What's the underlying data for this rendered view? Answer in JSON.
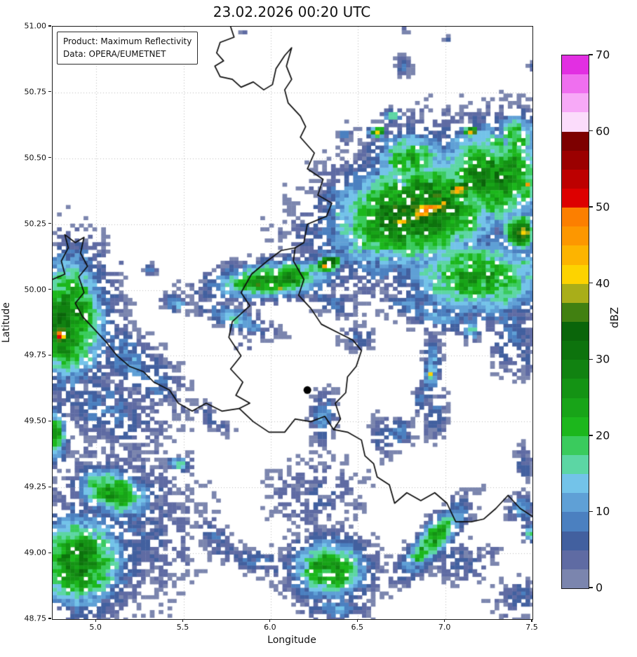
{
  "title": "23.02.2026 00:20 UTC",
  "annotation": {
    "product": "Product: Maximum Reflectivity",
    "source": "Data: OPERA/EUMETNET"
  },
  "axes": {
    "xlabel": "Longitude",
    "ylabel": "Latitude",
    "xlim": [
      4.75,
      7.5
    ],
    "ylim": [
      48.75,
      51.0
    ],
    "xticks": [
      5.0,
      5.5,
      6.0,
      6.5,
      7.0,
      7.5
    ],
    "xtick_labels": [
      "5.0",
      "5.5",
      "6.0",
      "6.5",
      "7.0",
      "7.5"
    ],
    "yticks": [
      51.0,
      50.75,
      50.5,
      50.25,
      50.0,
      49.75,
      49.5,
      49.25,
      49.0,
      48.75
    ],
    "ytick_labels": [
      "51.00",
      "50.75",
      "50.50",
      "50.25",
      "50.00",
      "49.75",
      "49.50",
      "49.25",
      "49.00",
      "48.75"
    ],
    "grid": "dotted"
  },
  "colorbar": {
    "label": "dBZ",
    "min": 0,
    "max": 70,
    "band_step": 2.5,
    "ticks": [
      0,
      10,
      20,
      30,
      40,
      50,
      60,
      70
    ],
    "palette_bottom_to_top": [
      "#7b85ae",
      "#5f6ba3",
      "#42609f",
      "#4b80c0",
      "#5fa0d6",
      "#73c3e9",
      "#5cd6a4",
      "#3acb5d",
      "#1cb71c",
      "#18a418",
      "#149314",
      "#118211",
      "#0d730d",
      "#0a650a",
      "#418011",
      "#a9ae19",
      "#fdd300",
      "#fdb400",
      "#fd9700",
      "#fc7f00",
      "#dd0000",
      "#bd0000",
      "#9b0000",
      "#7d0000",
      "#fbdcfb",
      "#f7a9f7",
      "#ef6fef",
      "#e22fe2"
    ]
  },
  "map": {
    "background": "#ffffff",
    "border_color": "#0d0d0d",
    "grid_color": "#bdbdbd",
    "marker": {
      "lon": 6.21,
      "lat": 49.62,
      "color": "#000000"
    },
    "borders": [
      [
        [
          5.77,
          51.0
        ],
        [
          5.79,
          50.96
        ],
        [
          5.71,
          50.94
        ],
        [
          5.69,
          50.9
        ],
        [
          5.73,
          50.87
        ],
        [
          5.68,
          50.85
        ],
        [
          5.71,
          50.81
        ],
        [
          5.78,
          50.8
        ],
        [
          5.83,
          50.77
        ],
        [
          5.9,
          50.79
        ],
        [
          5.96,
          50.76
        ],
        [
          6.01,
          50.78
        ],
        [
          6.03,
          50.84
        ],
        [
          6.08,
          50.89
        ],
        [
          6.12,
          50.92
        ],
        [
          6.09,
          50.85
        ],
        [
          6.12,
          50.8
        ],
        [
          6.08,
          50.76
        ],
        [
          6.1,
          50.71
        ],
        [
          6.17,
          50.66
        ],
        [
          6.2,
          50.62
        ],
        [
          6.17,
          50.58
        ],
        [
          6.25,
          50.52
        ],
        [
          6.21,
          50.46
        ],
        [
          6.3,
          50.42
        ],
        [
          6.27,
          50.36
        ],
        [
          6.35,
          50.33
        ],
        [
          6.32,
          50.28
        ],
        [
          6.21,
          50.25
        ],
        [
          6.19,
          50.18
        ],
        [
          6.14,
          50.16
        ]
      ],
      [
        [
          6.14,
          50.16
        ],
        [
          6.13,
          50.11
        ],
        [
          6.19,
          50.04
        ],
        [
          6.16,
          49.98
        ],
        [
          6.23,
          49.93
        ],
        [
          6.29,
          49.87
        ],
        [
          6.38,
          49.84
        ],
        [
          6.47,
          49.81
        ],
        [
          6.52,
          49.77
        ],
        [
          6.49,
          49.71
        ],
        [
          6.44,
          49.67
        ],
        [
          6.43,
          49.61
        ],
        [
          6.37,
          49.57
        ],
        [
          6.4,
          49.51
        ],
        [
          6.36,
          49.47
        ],
        [
          6.44,
          49.46
        ],
        [
          6.52,
          49.43
        ],
        [
          6.54,
          49.37
        ],
        [
          6.59,
          49.34
        ],
        [
          6.61,
          49.29
        ],
        [
          6.68,
          49.26
        ],
        [
          6.71,
          49.19
        ],
        [
          6.78,
          49.23
        ],
        [
          6.86,
          49.2
        ],
        [
          6.94,
          49.23
        ],
        [
          7.01,
          49.19
        ],
        [
          7.06,
          49.12
        ],
        [
          7.15,
          49.12
        ],
        [
          7.22,
          49.13
        ],
        [
          7.29,
          49.17
        ],
        [
          7.36,
          49.22
        ],
        [
          7.43,
          49.17
        ],
        [
          7.5,
          49.14
        ]
      ],
      [
        [
          6.14,
          50.16
        ],
        [
          6.06,
          50.15
        ],
        [
          5.98,
          50.11
        ],
        [
          5.89,
          50.06
        ],
        [
          5.83,
          49.99
        ],
        [
          5.88,
          49.94
        ],
        [
          5.78,
          49.88
        ],
        [
          5.76,
          49.82
        ],
        [
          5.83,
          49.75
        ],
        [
          5.77,
          49.7
        ],
        [
          5.84,
          49.65
        ],
        [
          5.8,
          49.6
        ],
        [
          5.88,
          49.57
        ],
        [
          5.82,
          49.55
        ],
        [
          5.9,
          49.5
        ],
        [
          5.99,
          49.46
        ],
        [
          6.08,
          49.46
        ],
        [
          6.14,
          49.51
        ],
        [
          6.23,
          49.5
        ],
        [
          6.31,
          49.52
        ],
        [
          6.36,
          49.47
        ]
      ],
      [
        [
          4.75,
          50.04
        ],
        [
          4.82,
          50.06
        ],
        [
          4.8,
          50.11
        ],
        [
          4.84,
          50.16
        ],
        [
          4.82,
          50.21
        ],
        [
          4.88,
          50.18
        ],
        [
          4.93,
          50.2
        ],
        [
          4.91,
          50.14
        ],
        [
          4.95,
          50.09
        ],
        [
          4.9,
          50.05
        ],
        [
          4.93,
          49.99
        ],
        [
          4.88,
          49.95
        ],
        [
          4.92,
          49.9
        ],
        [
          4.99,
          49.85
        ],
        [
          5.06,
          49.8
        ],
        [
          5.12,
          49.75
        ],
        [
          5.19,
          49.71
        ],
        [
          5.27,
          49.69
        ],
        [
          5.33,
          49.65
        ],
        [
          5.42,
          49.62
        ],
        [
          5.47,
          49.57
        ],
        [
          5.55,
          49.54
        ],
        [
          5.63,
          49.57
        ],
        [
          5.72,
          49.54
        ],
        [
          5.82,
          49.55
        ]
      ]
    ],
    "blob_format": "[lon, lat, radius_lon_deg, radius_lat_deg, angle_deg, peak_dbz]",
    "radar_blobs": [
      [
        6.85,
        50.3,
        0.58,
        0.23,
        8,
        33
      ],
      [
        7.27,
        50.43,
        0.38,
        0.21,
        0,
        30
      ],
      [
        6.8,
        50.5,
        0.24,
        0.12,
        0,
        24
      ],
      [
        7.19,
        50.05,
        0.46,
        0.17,
        0,
        26
      ],
      [
        7.43,
        50.22,
        0.1,
        0.075,
        0,
        41
      ],
      [
        6.9,
        50.3,
        0.23,
        0.053,
        12,
        45
      ],
      [
        6.94,
        50.31,
        0.145,
        0.029,
        14,
        48
      ],
      [
        6.8,
        50.28,
        0.028,
        0.013,
        0,
        52
      ],
      [
        7.07,
        50.38,
        0.13,
        0.032,
        12,
        43
      ],
      [
        6.76,
        50.26,
        0.08,
        0.027,
        20,
        43
      ],
      [
        7.15,
        50.6,
        0.05,
        0.021,
        0,
        41
      ],
      [
        6.61,
        50.6,
        0.05,
        0.021,
        0,
        40
      ],
      [
        7.47,
        50.4,
        0.036,
        0.019,
        0,
        42
      ],
      [
        7.41,
        50.58,
        0.14,
        0.1,
        0,
        23
      ],
      [
        6.95,
        49.9,
        0.2,
        0.059,
        -10,
        13
      ],
      [
        6.5,
        49.82,
        0.113,
        0.053,
        0,
        9
      ],
      [
        6.7,
        50.66,
        0.056,
        0.029,
        0,
        19
      ],
      [
        6.64,
        50.55,
        0.064,
        0.075,
        0,
        11
      ],
      [
        6.42,
        50.59,
        0.044,
        0.043,
        0,
        9
      ],
      [
        7.0,
        50.55,
        0.45,
        0.16,
        0,
        7
      ],
      [
        6.44,
        50.3,
        0.09,
        0.1,
        0,
        8
      ],
      [
        6.02,
        50.04,
        0.39,
        0.075,
        4,
        29
      ],
      [
        6.33,
        50.1,
        0.08,
        0.035,
        10,
        44
      ],
      [
        6.31,
        50.09,
        0.024,
        0.013,
        0,
        47
      ],
      [
        6.05,
        50.01,
        0.028,
        0.016,
        0,
        41
      ],
      [
        5.92,
        50.02,
        0.032,
        0.016,
        0,
        40
      ],
      [
        5.8,
        49.89,
        0.233,
        0.045,
        -12,
        16
      ],
      [
        5.45,
        49.95,
        0.088,
        0.035,
        -10,
        14
      ],
      [
        5.16,
        50.1,
        0.032,
        0.019,
        0,
        7
      ],
      [
        5.31,
        50.08,
        0.04,
        0.021,
        0,
        10
      ],
      [
        6.35,
        49.95,
        0.18,
        0.05,
        -10,
        9
      ],
      [
        4.83,
        49.89,
        0.25,
        0.27,
        0,
        31
      ],
      [
        4.8,
        49.83,
        0.068,
        0.05,
        0,
        48
      ],
      [
        5.22,
        49.72,
        0.34,
        0.12,
        -28,
        11
      ],
      [
        5.06,
        49.55,
        0.38,
        0.146,
        -15,
        9
      ],
      [
        5.66,
        49.51,
        0.13,
        0.048,
        -20,
        8
      ],
      [
        4.77,
        49.45,
        0.07,
        0.12,
        0,
        24
      ],
      [
        5.1,
        49.23,
        0.233,
        0.096,
        -10,
        27
      ],
      [
        4.9,
        48.97,
        0.3,
        0.2,
        0,
        29
      ],
      [
        5.14,
        49.12,
        0.46,
        0.33,
        0,
        8
      ],
      [
        5.48,
        49.34,
        0.072,
        0.032,
        0,
        18
      ],
      [
        5.7,
        49.05,
        0.16,
        0.067,
        -30,
        8
      ],
      [
        6.34,
        48.94,
        0.233,
        0.128,
        0,
        28
      ],
      [
        6.26,
        49.22,
        0.32,
        0.154,
        0,
        5.5
      ],
      [
        5.94,
        48.97,
        0.26,
        0.053,
        -5,
        9
      ],
      [
        6.38,
        48.79,
        0.2,
        0.053,
        0,
        12
      ],
      [
        6.93,
        49.05,
        0.24,
        0.069,
        35,
        27
      ],
      [
        7.09,
        48.97,
        0.18,
        0.085,
        0,
        7
      ],
      [
        6.92,
        49.7,
        0.055,
        0.13,
        -8,
        16
      ],
      [
        6.91,
        49.68,
        0.022,
        0.012,
        0,
        44
      ],
      [
        6.95,
        49.52,
        0.07,
        0.1,
        -15,
        9
      ],
      [
        6.86,
        49.58,
        0.05,
        0.08,
        -15,
        8
      ],
      [
        6.73,
        49.46,
        0.09,
        0.06,
        0,
        12
      ],
      [
        7.38,
        49.84,
        0.14,
        0.18,
        15,
        10
      ],
      [
        7.15,
        49.85,
        0.06,
        0.05,
        0,
        17
      ],
      [
        6.78,
        49.95,
        0.12,
        0.05,
        -5,
        12
      ],
      [
        6.3,
        49.52,
        0.08,
        0.11,
        -15,
        12
      ],
      [
        6.64,
        49.44,
        0.08,
        0.085,
        10,
        8
      ],
      [
        5.85,
        49.79,
        0.048,
        0.024,
        0,
        7
      ],
      [
        6.76,
        50.85,
        0.052,
        0.05,
        0,
        8
      ],
      [
        6.76,
        50.98,
        0.036,
        0.019,
        0,
        7
      ],
      [
        7.01,
        50.95,
        0.032,
        0.016,
        0,
        6
      ],
      [
        5.84,
        50.98,
        0.024,
        0.013,
        0,
        6
      ],
      [
        7.45,
        49.34,
        0.064,
        0.072,
        0,
        8
      ],
      [
        7.44,
        49.17,
        0.08,
        0.059,
        0,
        13
      ],
      [
        7.43,
        48.83,
        0.19,
        0.085,
        0,
        7
      ],
      [
        7.49,
        49.08,
        0.044,
        0.04,
        0,
        18
      ],
      [
        7.28,
        49.0,
        0.056,
        0.027,
        0,
        7
      ],
      [
        7.5,
        50.85,
        0.028,
        0.016,
        0,
        6
      ],
      [
        7.47,
        49.74,
        0.05,
        0.07,
        0,
        8
      ]
    ]
  }
}
